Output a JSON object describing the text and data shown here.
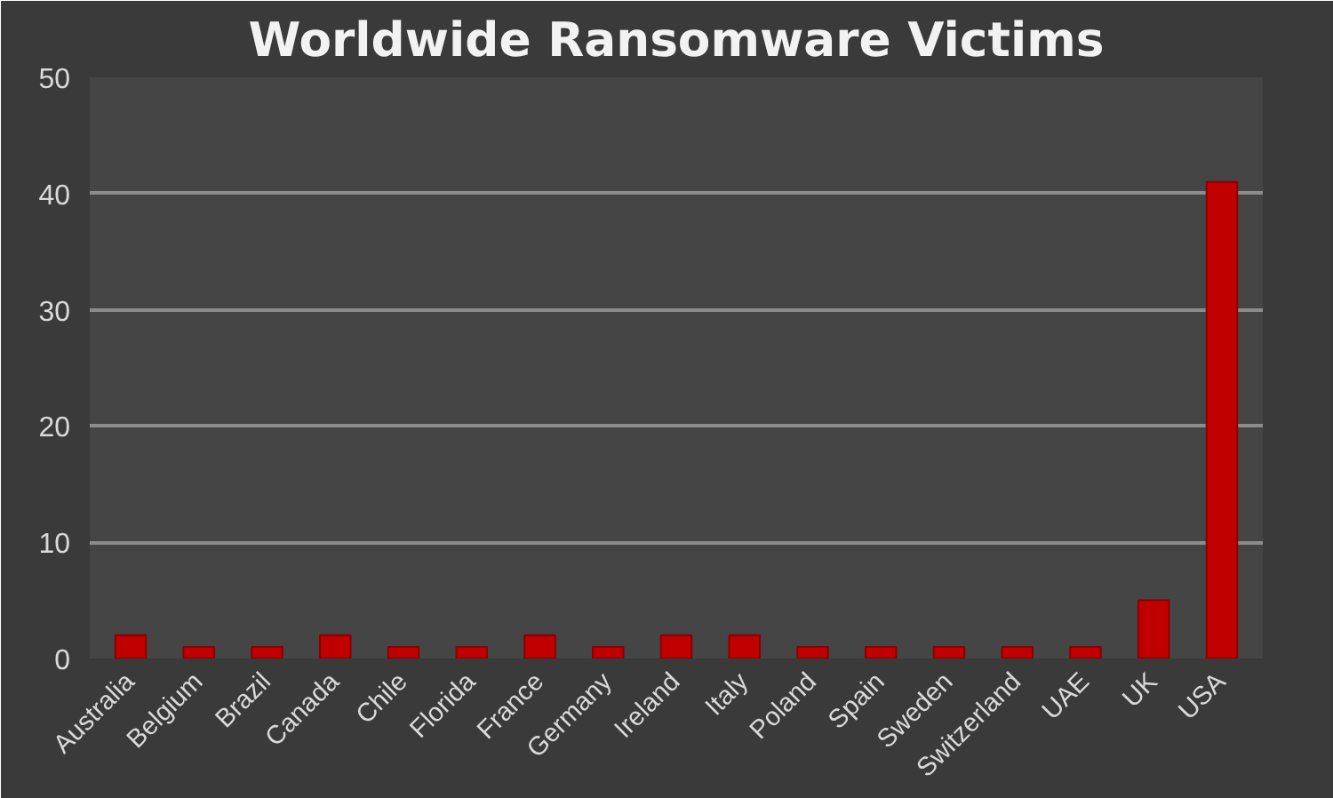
{
  "chart_data": {
    "type": "bar",
    "title": "Worldwide Ransomware Victims",
    "categories": [
      "Australia",
      "Belgium",
      "Brazil",
      "Canada",
      "Chile",
      "Florida",
      "France",
      "Germany",
      "Ireland",
      "Italy",
      "Poland",
      "Spain",
      "Sweden",
      "Switzerland",
      "UAE",
      "UK",
      "USA"
    ],
    "values": [
      2,
      1,
      1,
      2,
      1,
      1,
      2,
      1,
      2,
      2,
      1,
      1,
      1,
      1,
      1,
      5,
      41
    ],
    "color": "#c00000",
    "ylim": [
      0,
      50
    ],
    "yticks": [
      0,
      10,
      20,
      30,
      40,
      50
    ],
    "grid": "y"
  }
}
